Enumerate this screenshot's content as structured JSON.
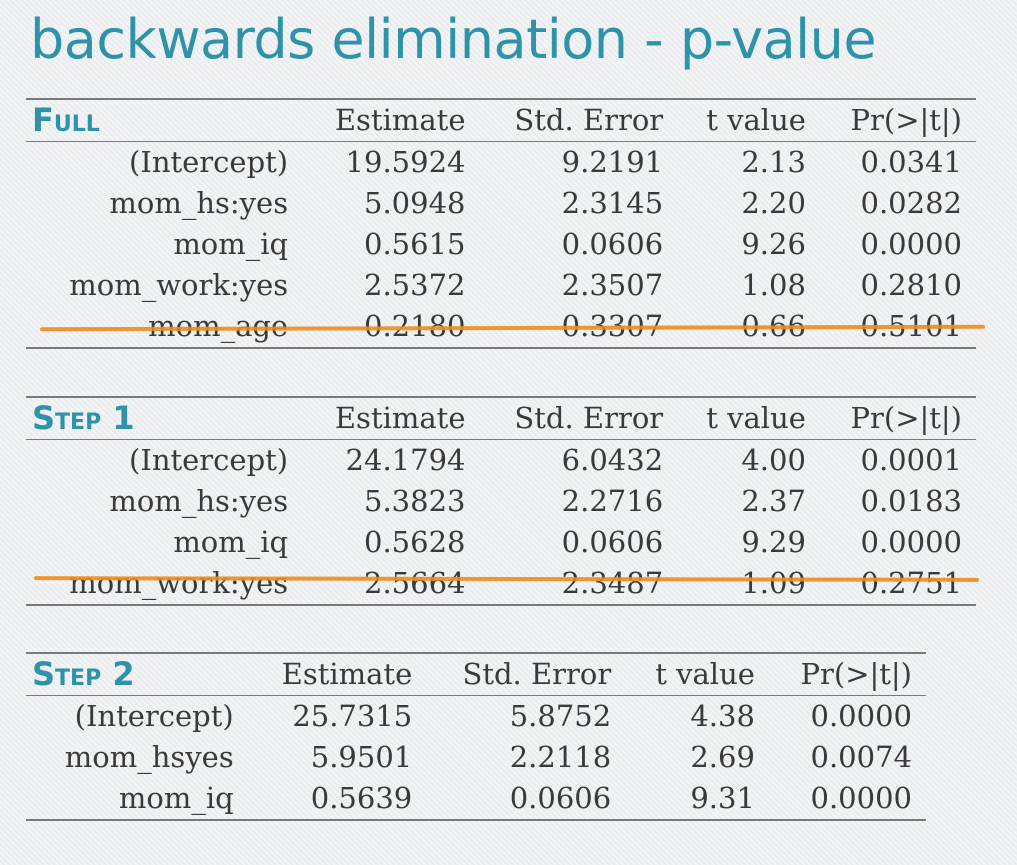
{
  "title": "backwards elimination - p-value",
  "columns": [
    "Estimate",
    "Std. Error",
    "t value",
    "Pr(>|t|)"
  ],
  "tables": [
    {
      "label": "Full",
      "rows": [
        [
          "(Intercept)",
          "19.5924",
          "9.2191",
          "2.13",
          "0.0341"
        ],
        [
          "mom_hs:yes",
          "5.0948",
          "2.3145",
          "2.20",
          "0.0282"
        ],
        [
          "mom_iq",
          "0.5615",
          "0.0606",
          "9.26",
          "0.0000"
        ],
        [
          "mom_work:yes",
          "2.5372",
          "2.3507",
          "1.08",
          "0.2810"
        ],
        [
          "mom_age",
          "0.2180",
          "0.3307",
          "0.66",
          "0.5101"
        ]
      ]
    },
    {
      "label": "Step 1",
      "rows": [
        [
          "(Intercept)",
          "24.1794",
          "6.0432",
          "4.00",
          "0.0001"
        ],
        [
          "mom_hs:yes",
          "5.3823",
          "2.2716",
          "2.37",
          "0.0183"
        ],
        [
          "mom_iq",
          "0.5628",
          "0.0606",
          "9.29",
          "0.0000"
        ],
        [
          "mom_work:yes",
          "2.5664",
          "2.3487",
          "1.09",
          "0.2751"
        ]
      ]
    },
    {
      "label": "Step 2",
      "rows": [
        [
          "(Intercept)",
          "25.7315",
          "5.8752",
          "4.38",
          "0.0000"
        ],
        [
          "mom_hsyes",
          "5.9501",
          "2.2118",
          "2.69",
          "0.0074"
        ],
        [
          "mom_iq",
          "0.5639",
          "0.0606",
          "9.31",
          "0.0000"
        ]
      ]
    }
  ],
  "colors": {
    "title": "#2e93a8",
    "strike": "#f08c1a",
    "rule": "#7a7a7a"
  }
}
